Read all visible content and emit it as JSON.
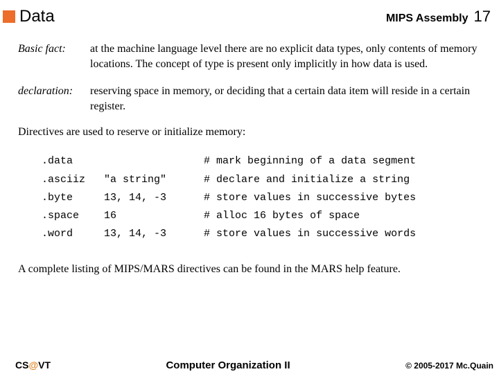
{
  "header": {
    "title": "Data",
    "section": "MIPS Assembly",
    "page": "17"
  },
  "defs": [
    {
      "term": "Basic fact:",
      "body": "at the machine language level there are no explicit data types, only contents of memory locations.  The concept of type is present only implicitly in how data is used."
    },
    {
      "term": "declaration:",
      "body": "reserving space in memory, or deciding that a certain data item will reside in a certain register."
    }
  ],
  "intro": "Directives are used to reserve or initialize memory:",
  "code": ".data                     # mark beginning of a data segment\n.asciiz   \"a string\"      # declare and initialize a string\n.byte     13, 14, -3      # store values in successive bytes\n.space    16              # alloc 16 bytes of space\n.word     13, 14, -3      # store values in successive words",
  "closing": "A complete listing of MIPS/MARS directives can be found in the MARS help feature.",
  "footer": {
    "left_pre": "CS",
    "left_at": "@",
    "left_post": "VT",
    "center": "Computer Organization II",
    "right": "© 2005-2017 Mc.Quain"
  },
  "colors": {
    "accent": "#ec6e2a",
    "at": "#e08a2c"
  }
}
